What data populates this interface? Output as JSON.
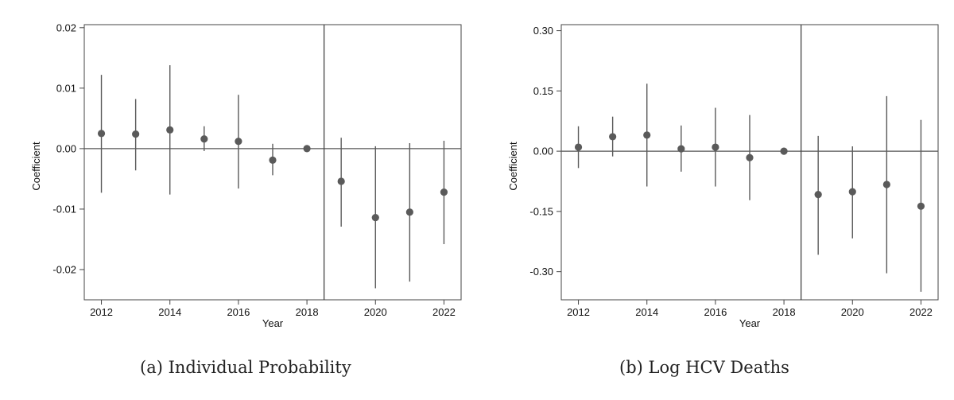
{
  "chart_data": [
    {
      "type": "scatter",
      "subtype": "coefficient plot with confidence intervals",
      "caption": "(a)  Individual Probability",
      "xlabel": "Year",
      "ylabel": "Coefficient",
      "xlim": [
        2011.5,
        2022.5
      ],
      "ylim": [
        -0.025,
        0.0205
      ],
      "xticks": [
        2012,
        2014,
        2016,
        2018,
        2020,
        2022
      ],
      "yticks": [
        0.02,
        0.01,
        0.0,
        -0.01,
        -0.02
      ],
      "ytick_labels": [
        "0.02",
        "0.01",
        "0.00",
        "-0.01",
        "-0.02"
      ],
      "reference_line_y": 0,
      "vertical_line_x": 2018.5,
      "grid": false,
      "point_color": "#5a5a5a",
      "points": [
        {
          "x": 2012,
          "y": 0.0025,
          "lo": -0.0073,
          "hi": 0.0122
        },
        {
          "x": 2013,
          "y": 0.0024,
          "lo": -0.0036,
          "hi": 0.0082
        },
        {
          "x": 2014,
          "y": 0.0031,
          "lo": -0.0076,
          "hi": 0.0138
        },
        {
          "x": 2015,
          "y": 0.0016,
          "lo": -0.0004,
          "hi": 0.0037
        },
        {
          "x": 2016,
          "y": 0.0012,
          "lo": -0.0066,
          "hi": 0.0089
        },
        {
          "x": 2017,
          "y": -0.0019,
          "lo": -0.0044,
          "hi": 0.0008
        },
        {
          "x": 2018,
          "y": 0.0,
          "lo": 0.0,
          "hi": 0.0
        },
        {
          "x": 2019,
          "y": -0.0054,
          "lo": -0.0129,
          "hi": 0.0018
        },
        {
          "x": 2020,
          "y": -0.0114,
          "lo": -0.0231,
          "hi": 0.0004
        },
        {
          "x": 2021,
          "y": -0.0105,
          "lo": -0.022,
          "hi": 0.0009
        },
        {
          "x": 2022,
          "y": -0.0072,
          "lo": -0.0158,
          "hi": 0.0013
        }
      ]
    },
    {
      "type": "scatter",
      "subtype": "coefficient plot with confidence intervals",
      "caption": "(b)  Log HCV Deaths",
      "xlabel": "Year",
      "ylabel": "Coefficient",
      "xlim": [
        2011.5,
        2022.5
      ],
      "ylim": [
        -0.37,
        0.315
      ],
      "xticks": [
        2012,
        2014,
        2016,
        2018,
        2020,
        2022
      ],
      "yticks": [
        0.3,
        0.15,
        0.0,
        -0.15,
        -0.3
      ],
      "ytick_labels": [
        "0.30",
        "0.15",
        "0.00",
        "-0.15",
        "-0.30"
      ],
      "reference_line_y": 0,
      "vertical_line_x": 2018.5,
      "grid": false,
      "point_color": "#5a5a5a",
      "points": [
        {
          "x": 2012,
          "y": 0.01,
          "lo": -0.042,
          "hi": 0.062
        },
        {
          "x": 2013,
          "y": 0.036,
          "lo": -0.013,
          "hi": 0.086
        },
        {
          "x": 2014,
          "y": 0.04,
          "lo": -0.088,
          "hi": 0.168
        },
        {
          "x": 2015,
          "y": 0.006,
          "lo": -0.051,
          "hi": 0.064
        },
        {
          "x": 2016,
          "y": 0.01,
          "lo": -0.088,
          "hi": 0.108
        },
        {
          "x": 2017,
          "y": -0.016,
          "lo": -0.122,
          "hi": 0.09
        },
        {
          "x": 2018,
          "y": 0.0,
          "lo": 0.0,
          "hi": 0.0
        },
        {
          "x": 2019,
          "y": -0.108,
          "lo": -0.258,
          "hi": 0.038
        },
        {
          "x": 2020,
          "y": -0.101,
          "lo": -0.217,
          "hi": 0.012
        },
        {
          "x": 2021,
          "y": -0.083,
          "lo": -0.304,
          "hi": 0.137
        },
        {
          "x": 2022,
          "y": -0.137,
          "lo": -0.35,
          "hi": 0.078
        }
      ]
    }
  ]
}
